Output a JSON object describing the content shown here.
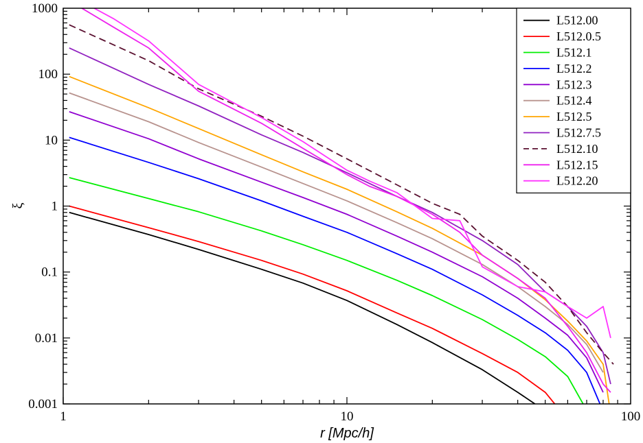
{
  "chart_data": {
    "type": "line",
    "xlabel": "r [Mpc/h]",
    "ylabel": "ξ",
    "xscale": "log",
    "yscale": "log",
    "xlim": [
      1,
      100
    ],
    "ylim": [
      0.001,
      1000
    ],
    "x_ticks": [
      "1",
      "10",
      "100"
    ],
    "y_ticks": [
      "0.001",
      "0.01",
      "0.1",
      "1",
      "10",
      "100",
      "1000"
    ],
    "grid": false,
    "legend_position": "top-right",
    "series": [
      {
        "name": "L512.00",
        "color": "#000000",
        "dash": false,
        "x": [
          1.05,
          2,
          3,
          5,
          7,
          10,
          15,
          20,
          30,
          40,
          46
        ],
        "y": [
          0.8,
          0.37,
          0.22,
          0.11,
          0.068,
          0.037,
          0.016,
          0.0085,
          0.0033,
          0.0015,
          0.001
        ]
      },
      {
        "name": "L512.0.5",
        "color": "#ff0000",
        "dash": false,
        "x": [
          1.05,
          2,
          3,
          5,
          7,
          10,
          15,
          20,
          30,
          40,
          50,
          54
        ],
        "y": [
          1.0,
          0.47,
          0.29,
          0.15,
          0.093,
          0.052,
          0.024,
          0.014,
          0.0058,
          0.003,
          0.0015,
          0.001
        ]
      },
      {
        "name": "L512.1",
        "color": "#00ee00",
        "dash": false,
        "x": [
          1.05,
          2,
          3,
          5,
          7,
          10,
          15,
          20,
          30,
          40,
          50,
          60,
          68
        ],
        "y": [
          2.7,
          1.3,
          0.82,
          0.42,
          0.26,
          0.15,
          0.075,
          0.044,
          0.019,
          0.0095,
          0.0052,
          0.0026,
          0.001
        ]
      },
      {
        "name": "L512.2",
        "color": "#0000ff",
        "dash": false,
        "x": [
          1.05,
          2,
          3,
          5,
          7,
          10,
          15,
          20,
          30,
          40,
          50,
          60,
          70,
          78
        ],
        "y": [
          11,
          4.6,
          2.6,
          1.2,
          0.7,
          0.4,
          0.19,
          0.11,
          0.045,
          0.022,
          0.012,
          0.0065,
          0.003,
          0.001
        ]
      },
      {
        "name": "L512.3",
        "color": "#9000d0",
        "dash": false,
        "x": [
          1.05,
          2,
          3,
          5,
          7,
          10,
          15,
          20,
          30,
          40,
          50,
          60,
          70,
          80
        ],
        "y": [
          27,
          10.5,
          5.2,
          2.3,
          1.35,
          0.75,
          0.35,
          0.2,
          0.085,
          0.04,
          0.02,
          0.011,
          0.005,
          0.0015
        ]
      },
      {
        "name": "L512.4",
        "color": "#b8938e",
        "dash": false,
        "x": [
          1.05,
          2,
          3,
          5,
          7,
          10,
          15,
          20,
          30,
          40,
          50,
          60,
          70,
          80
        ],
        "y": [
          52,
          19,
          9.2,
          3.9,
          2.2,
          1.2,
          0.56,
          0.32,
          0.13,
          0.06,
          0.03,
          0.016,
          0.008,
          0.003
        ]
      },
      {
        "name": "L512.5",
        "color": "#ffa500",
        "dash": false,
        "x": [
          1.05,
          2,
          3,
          5,
          7,
          10,
          15,
          20,
          30,
          40,
          50,
          60,
          70,
          80,
          84
        ],
        "y": [
          92,
          31,
          15,
          6,
          3.3,
          1.8,
          0.82,
          0.46,
          0.18,
          0.08,
          0.038,
          0.018,
          0.009,
          0.004,
          0.001
        ]
      },
      {
        "name": "L512.7.5",
        "color": "#9020c0",
        "dash": false,
        "x": [
          1.05,
          2,
          3,
          5,
          7,
          10,
          15,
          20,
          30,
          40,
          50,
          60,
          70,
          80,
          85
        ],
        "y": [
          250,
          70,
          33,
          12,
          6.5,
          3.2,
          1.4,
          0.8,
          0.3,
          0.13,
          0.05,
          0.03,
          0.015,
          0.006,
          0.002
        ]
      },
      {
        "name": "L512.10",
        "color": "#5a1030",
        "dash": true,
        "x": [
          1.05,
          2,
          3,
          5,
          7,
          10,
          15,
          20,
          25,
          30,
          40,
          50,
          60,
          70,
          80,
          87
        ],
        "y": [
          560,
          160,
          60,
          23,
          11.5,
          5.2,
          2.1,
          1.1,
          0.75,
          0.35,
          0.15,
          0.07,
          0.03,
          0.012,
          0.006,
          0.004
        ]
      },
      {
        "name": "L512.15",
        "color": "#ee22ee",
        "dash": false,
        "x": [
          1.05,
          1.5,
          2,
          3,
          5,
          7,
          10,
          12,
          15,
          20,
          25,
          30,
          40,
          50,
          60,
          70,
          80,
          85
        ],
        "y": [
          1300,
          520,
          250,
          55,
          18,
          7.5,
          3.0,
          2.0,
          1.4,
          0.75,
          0.4,
          0.18,
          0.08,
          0.04,
          0.015,
          0.006,
          0.002,
          0.0015
        ]
      },
      {
        "name": "L512.20",
        "color": "#ff33ff",
        "dash": false,
        "x": [
          1.05,
          1.5,
          2,
          3,
          5,
          7,
          10,
          12,
          15,
          20,
          25,
          30,
          40,
          50,
          60,
          70,
          80,
          85
        ],
        "y": [
          1600,
          700,
          320,
          70,
          22,
          9.5,
          3.5,
          2.4,
          1.6,
          0.65,
          0.6,
          0.12,
          0.06,
          0.05,
          0.03,
          0.02,
          0.03,
          0.01
        ]
      }
    ]
  }
}
